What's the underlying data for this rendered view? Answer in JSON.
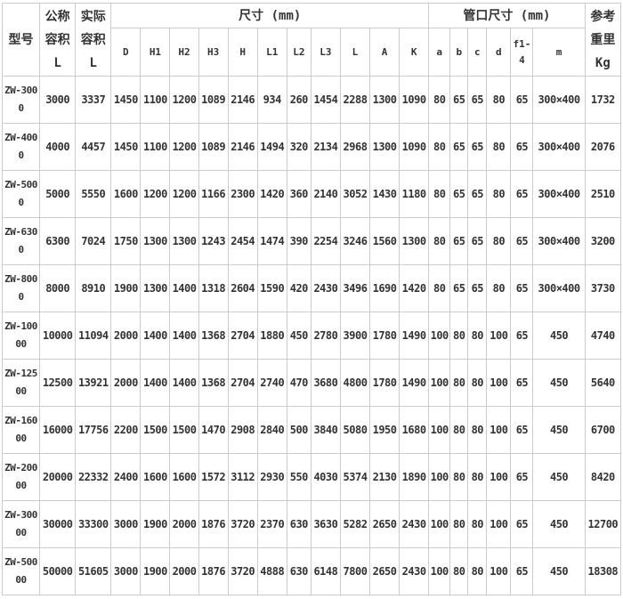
{
  "header": {
    "model": "型号",
    "nominal": [
      "公称",
      "容积",
      "L"
    ],
    "actual": [
      "实际",
      "容积",
      "L"
    ],
    "dimensions": "尺寸 (mm)",
    "nozzle": "管口尺寸 (mm)",
    "weight": [
      "参考",
      "重里",
      "Kg"
    ],
    "dim_cols": [
      "D",
      "H1",
      "H2",
      "H3",
      "H",
      "L1",
      "L2",
      "L3",
      "L",
      "A",
      "K"
    ],
    "nozzle_cols": [
      "a",
      "b",
      "c",
      "d",
      "f1-4",
      "m"
    ]
  },
  "rows": [
    [
      "ZW-3000",
      "3000",
      "3337",
      "1450",
      "1100",
      "1200",
      "1089",
      "2146",
      "934",
      "260",
      "1454",
      "2288",
      "1300",
      "1090",
      "80",
      "65",
      "65",
      "80",
      "65",
      "300×400",
      "1732"
    ],
    [
      "ZW-4000",
      "4000",
      "4457",
      "1450",
      "1100",
      "1200",
      "1089",
      "2146",
      "1494",
      "320",
      "2134",
      "2968",
      "1300",
      "1090",
      "80",
      "65",
      "65",
      "80",
      "65",
      "300×400",
      "2076"
    ],
    [
      "ZW-5000",
      "5000",
      "5550",
      "1600",
      "1200",
      "1200",
      "1166",
      "2300",
      "1420",
      "360",
      "2140",
      "3052",
      "1430",
      "1180",
      "80",
      "65",
      "65",
      "80",
      "65",
      "300×400",
      "2510"
    ],
    [
      "ZW-6300",
      "6300",
      "7024",
      "1750",
      "1300",
      "1300",
      "1243",
      "2454",
      "1474",
      "390",
      "2254",
      "3246",
      "1560",
      "1300",
      "80",
      "65",
      "65",
      "80",
      "65",
      "300×400",
      "3200"
    ],
    [
      "ZW-8000",
      "8000",
      "8910",
      "1900",
      "1300",
      "1400",
      "1318",
      "2604",
      "1590",
      "420",
      "2430",
      "3496",
      "1690",
      "1420",
      "80",
      "65",
      "65",
      "80",
      "65",
      "300×400",
      "3730"
    ],
    [
      "ZW-10000",
      "10000",
      "11094",
      "2000",
      "1400",
      "1400",
      "1368",
      "2704",
      "1880",
      "450",
      "2780",
      "3900",
      "1780",
      "1490",
      "100",
      "80",
      "80",
      "100",
      "65",
      "450",
      "4740"
    ],
    [
      "ZW-12500",
      "12500",
      "13921",
      "2000",
      "1400",
      "1400",
      "1368",
      "2704",
      "2740",
      "470",
      "3680",
      "4800",
      "1780",
      "1490",
      "100",
      "80",
      "80",
      "100",
      "65",
      "450",
      "5640"
    ],
    [
      "ZW-16000",
      "16000",
      "17756",
      "2200",
      "1500",
      "1500",
      "1470",
      "2908",
      "2840",
      "500",
      "3840",
      "5080",
      "1950",
      "1680",
      "100",
      "80",
      "80",
      "100",
      "65",
      "450",
      "6700"
    ],
    [
      "ZW-20000",
      "20000",
      "22332",
      "2400",
      "1600",
      "1600",
      "1572",
      "3112",
      "2930",
      "550",
      "4030",
      "5374",
      "2130",
      "1890",
      "100",
      "80",
      "80",
      "100",
      "65",
      "450",
      "8420"
    ],
    [
      "ZW-30000",
      "30000",
      "33300",
      "3000",
      "1900",
      "2000",
      "1876",
      "3720",
      "2370",
      "630",
      "3630",
      "5282",
      "2650",
      "2430",
      "100",
      "80",
      "80",
      "100",
      "65",
      "450",
      "12700"
    ],
    [
      "ZW-50000",
      "50000",
      "51605",
      "3000",
      "1900",
      "2000",
      "1876",
      "3720",
      "4888",
      "630",
      "6148",
      "7800",
      "2650",
      "2430",
      "100",
      "80",
      "80",
      "100",
      "65",
      "450",
      "18308"
    ]
  ]
}
